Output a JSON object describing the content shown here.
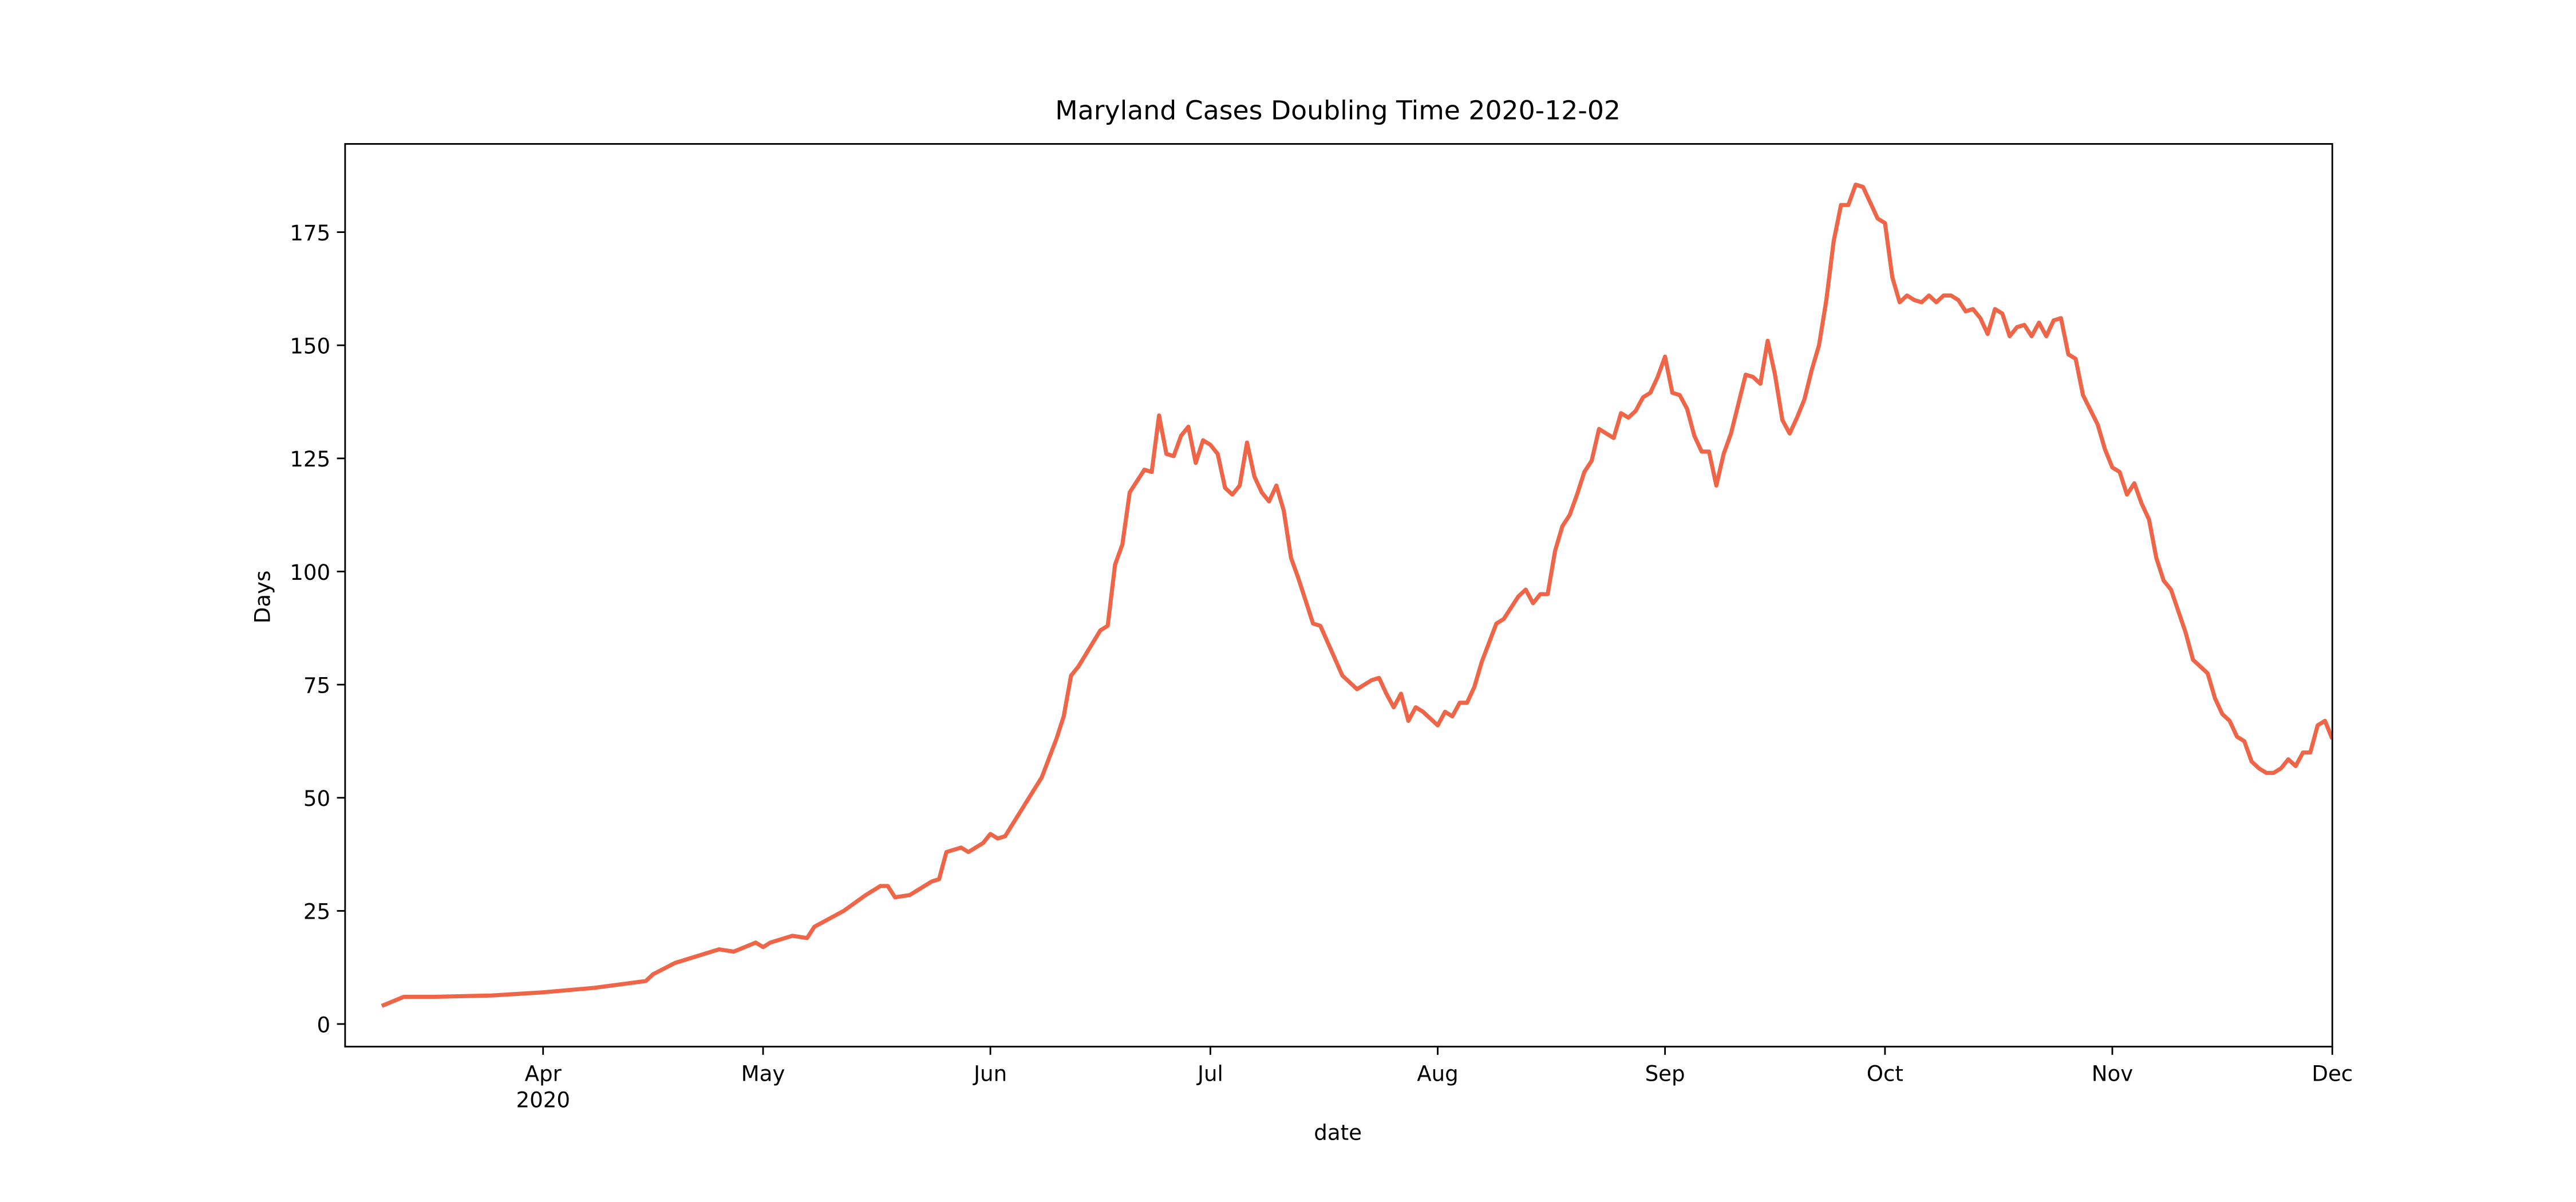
{
  "chart_data": {
    "type": "line",
    "title": "Maryland Cases Doubling Time 2020-12-02",
    "xlabel": "date",
    "ylabel": "Days",
    "xlim": [
      "2020-03-05",
      "2020-12-01"
    ],
    "ylim": [
      -5,
      194.5
    ],
    "yticks": [
      0,
      25,
      50,
      75,
      100,
      125,
      150,
      175
    ],
    "xticks": [
      {
        "value": "2020-04-01",
        "label": "Apr",
        "sublabel": "2020"
      },
      {
        "value": "2020-05-01",
        "label": "May"
      },
      {
        "value": "2020-06-01",
        "label": "Jun"
      },
      {
        "value": "2020-07-01",
        "label": "Jul"
      },
      {
        "value": "2020-08-01",
        "label": "Aug"
      },
      {
        "value": "2020-09-01",
        "label": "Sep"
      },
      {
        "value": "2020-10-01",
        "label": "Oct"
      },
      {
        "value": "2020-11-01",
        "label": "Nov"
      },
      {
        "value": "2020-12-01",
        "label": "Dec"
      }
    ],
    "x": [
      "2020-03-10",
      "2020-03-13",
      "2020-03-17",
      "2020-03-25",
      "2020-04-01",
      "2020-04-08",
      "2020-04-15",
      "2020-04-16",
      "2020-04-19",
      "2020-04-25",
      "2020-04-27",
      "2020-04-30",
      "2020-05-01",
      "2020-05-02",
      "2020-05-05",
      "2020-05-07",
      "2020-05-08",
      "2020-05-12",
      "2020-05-15",
      "2020-05-17",
      "2020-05-18",
      "2020-05-19",
      "2020-05-21",
      "2020-05-22",
      "2020-05-24",
      "2020-05-25",
      "2020-05-26",
      "2020-05-28",
      "2020-05-29",
      "2020-05-31",
      "2020-06-01",
      "2020-06-02",
      "2020-06-03",
      "2020-06-08",
      "2020-06-10",
      "2020-06-11",
      "2020-06-12",
      "2020-06-13",
      "2020-06-16",
      "2020-06-17",
      "2020-06-18",
      "2020-06-19",
      "2020-06-20",
      "2020-06-22",
      "2020-06-23",
      "2020-06-24",
      "2020-06-25",
      "2020-06-26",
      "2020-06-27",
      "2020-06-28",
      "2020-06-29",
      "2020-06-30",
      "2020-07-01",
      "2020-07-02",
      "2020-07-03",
      "2020-07-04",
      "2020-07-05",
      "2020-07-06",
      "2020-07-07",
      "2020-07-08",
      "2020-07-09",
      "2020-07-10",
      "2020-07-11",
      "2020-07-12",
      "2020-07-13",
      "2020-07-15",
      "2020-07-16",
      "2020-07-19",
      "2020-07-21",
      "2020-07-23",
      "2020-07-24",
      "2020-07-25",
      "2020-07-26",
      "2020-07-27",
      "2020-07-28",
      "2020-07-29",
      "2020-07-30",
      "2020-08-01",
      "2020-08-02",
      "2020-08-03",
      "2020-08-04",
      "2020-08-05",
      "2020-08-06",
      "2020-08-07",
      "2020-08-09",
      "2020-08-10",
      "2020-08-12",
      "2020-08-13",
      "2020-08-14",
      "2020-08-15",
      "2020-08-16",
      "2020-08-17",
      "2020-08-18",
      "2020-08-19",
      "2020-08-20",
      "2020-08-21",
      "2020-08-22",
      "2020-08-23",
      "2020-08-25",
      "2020-08-26",
      "2020-08-27",
      "2020-08-28",
      "2020-08-29",
      "2020-08-30",
      "2020-08-31",
      "2020-09-01",
      "2020-09-02",
      "2020-09-03",
      "2020-09-04",
      "2020-09-05",
      "2020-09-06",
      "2020-09-07",
      "2020-09-08",
      "2020-09-09",
      "2020-09-10",
      "2020-09-12",
      "2020-09-13",
      "2020-09-14",
      "2020-09-15",
      "2020-09-16",
      "2020-09-17",
      "2020-09-18",
      "2020-09-19",
      "2020-09-20",
      "2020-09-21",
      "2020-09-22",
      "2020-09-23",
      "2020-09-24",
      "2020-09-25",
      "2020-09-26",
      "2020-09-27",
      "2020-09-28",
      "2020-09-29",
      "2020-09-30",
      "2020-10-01",
      "2020-10-02",
      "2020-10-03",
      "2020-10-04",
      "2020-10-05",
      "2020-10-06",
      "2020-10-07",
      "2020-10-08",
      "2020-10-09",
      "2020-10-10",
      "2020-10-11",
      "2020-10-12",
      "2020-10-13",
      "2020-10-14",
      "2020-10-15",
      "2020-10-16",
      "2020-10-17",
      "2020-10-18",
      "2020-10-19",
      "2020-10-20",
      "2020-10-21",
      "2020-10-22",
      "2020-10-23",
      "2020-10-24",
      "2020-10-25",
      "2020-10-26",
      "2020-10-27",
      "2020-10-28",
      "2020-10-30",
      "2020-10-31",
      "2020-11-01",
      "2020-11-02",
      "2020-11-03",
      "2020-11-04",
      "2020-11-05",
      "2020-11-06",
      "2020-11-07",
      "2020-11-08",
      "2020-11-09",
      "2020-11-11",
      "2020-11-12",
      "2020-11-14",
      "2020-11-15",
      "2020-11-16",
      "2020-11-17",
      "2020-11-18",
      "2020-11-19",
      "2020-11-20",
      "2020-11-21",
      "2020-11-22",
      "2020-11-23",
      "2020-11-24",
      "2020-11-25",
      "2020-11-26",
      "2020-11-27",
      "2020-11-28",
      "2020-11-29",
      "2020-11-30",
      "2020-12-01"
    ],
    "series": [
      {
        "name": "Days",
        "color": "#ef6548",
        "values": [
          4,
          6,
          6,
          6.3,
          7,
          8,
          9.5,
          11,
          13.5,
          16.5,
          16,
          18,
          17,
          18,
          19.5,
          19,
          21.5,
          25,
          28.5,
          30.5,
          30.5,
          28,
          28.5,
          29.5,
          31.5,
          32,
          38,
          39,
          38,
          40,
          42,
          41,
          41.5,
          54.5,
          63,
          68,
          77,
          79,
          87,
          88,
          101.5,
          106,
          117.5,
          122.5,
          122,
          134.5,
          126,
          125.5,
          130,
          132,
          124,
          129,
          128,
          126,
          118.5,
          117,
          119,
          128.5,
          121,
          117.5,
          115.5,
          119,
          113.5,
          103,
          98.5,
          88.5,
          88,
          77,
          74,
          76,
          76.5,
          73,
          70,
          73,
          67,
          70,
          69,
          66,
          69,
          68,
          71,
          71,
          74.5,
          80,
          88.5,
          89.5,
          94.5,
          96,
          93,
          95,
          95,
          104.5,
          110,
          112.5,
          117,
          122,
          124.5,
          131.5,
          129.5,
          135,
          134,
          135.5,
          138.5,
          139.5,
          143,
          147.5,
          139.5,
          139,
          136,
          130,
          126.5,
          126.5,
          119,
          126,
          130.5,
          143.5,
          143,
          141.5,
          151,
          143.5,
          133.5,
          130.5,
          134,
          138,
          144.5,
          150,
          160,
          173,
          181,
          181,
          185.5,
          185,
          181.5,
          178,
          177,
          165,
          159.5,
          161,
          160,
          159.5,
          161,
          159.5,
          161,
          161,
          160,
          157.5,
          158,
          156,
          152.5,
          158,
          157,
          152,
          154,
          154.5,
          152,
          155,
          152,
          155.5,
          156,
          148,
          147,
          139,
          132.5,
          127,
          123,
          122,
          117,
          119.5,
          115,
          111.5,
          103,
          98,
          96,
          86.5,
          80.5,
          77.5,
          72,
          68.5,
          67,
          63.5,
          62.5,
          58,
          56.5,
          55.5,
          55.5,
          56.5,
          58.5,
          57,
          60,
          60,
          66,
          67,
          63
        ]
      }
    ]
  }
}
